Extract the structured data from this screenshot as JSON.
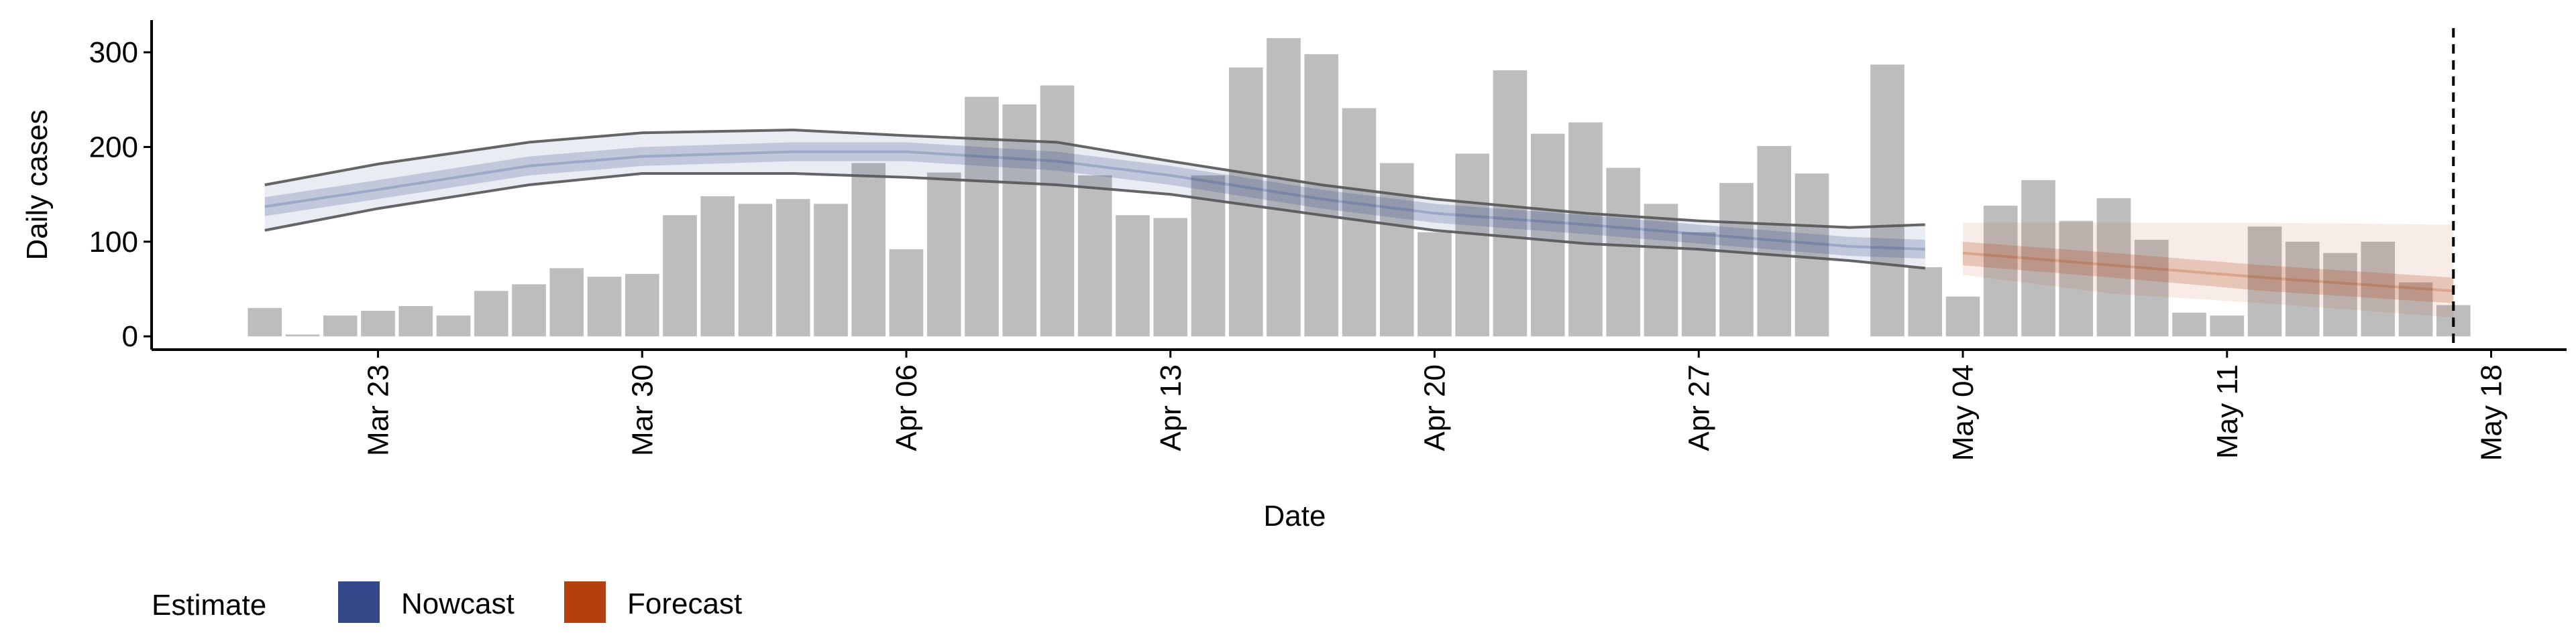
{
  "chart_data": {
    "type": "bar",
    "x_label": "Date",
    "y_label": "Daily cases",
    "color": "#bdbdbd",
    "x": [
      "Mar 20",
      "Mar 21",
      "Mar 22",
      "Mar 23",
      "Mar 24",
      "Mar 25",
      "Mar 26",
      "Mar 27",
      "Mar 28",
      "Mar 29",
      "Mar 30",
      "Mar 31",
      "Apr 1",
      "Apr 2",
      "Apr 3",
      "Apr 4",
      "Apr 5",
      "Apr 6",
      "Apr 7",
      "Apr 8",
      "Apr 9",
      "Apr 10",
      "Apr 11",
      "Apr 12",
      "Apr 13",
      "Apr 14",
      "Apr 15",
      "Apr 16",
      "Apr 17",
      "Apr 18",
      "Apr 19",
      "Apr 20",
      "Apr 21",
      "Apr 22",
      "Apr 23",
      "Apr 24",
      "Apr 25",
      "Apr 26",
      "Apr 27",
      "Apr 28",
      "Apr 29",
      "Apr 30",
      "May 1",
      "May 2",
      "May 3",
      "May 4",
      "May 5",
      "May 6",
      "May 7",
      "May 8",
      "May 9",
      "May 10",
      "May 11",
      "May 12",
      "May 13",
      "May 14",
      "May 15",
      "May 16",
      "May 17"
    ],
    "values": [
      30,
      2,
      22,
      27,
      32,
      22,
      48,
      55,
      72,
      63,
      66,
      128,
      148,
      140,
      145,
      140,
      183,
      92,
      173,
      253,
      245,
      265,
      170,
      128,
      125,
      170,
      284,
      315,
      298,
      241,
      183,
      110,
      193,
      281,
      214,
      226,
      178,
      140,
      110,
      162,
      201,
      172,
      null,
      287,
      73,
      42,
      138,
      165,
      122,
      146,
      102,
      25,
      22,
      116,
      100,
      88,
      100,
      57,
      33
    ],
    "xlim": [
      "Mar 17",
      "May 20"
    ],
    "xticks": [
      "Mar 23",
      "Mar 30",
      "Apr 06",
      "Apr 13",
      "Apr 20",
      "Apr 27",
      "May 04",
      "May 11",
      "May 18"
    ],
    "ylim": [
      -14,
      334
    ],
    "yticks": [
      0,
      100,
      200,
      300
    ],
    "vline": "May 17",
    "legend": {
      "title": "Estimate",
      "position": "bottom-left"
    },
    "series": [
      {
        "name": "Nowcast",
        "color": "#34488a",
        "x": [
          "Mar 20",
          "Mar 23",
          "Mar 27",
          "Mar 30",
          "Apr 3",
          "Apr 6",
          "Apr 10",
          "Apr 13",
          "Apr 17",
          "Apr 20",
          "Apr 24",
          "Apr 27",
          "May 1",
          "May 3"
        ],
        "values": [
          137,
          155,
          180,
          190,
          195,
          195,
          185,
          170,
          145,
          130,
          118,
          108,
          95,
          92
        ],
        "lower_50": [
          127,
          145,
          170,
          180,
          185,
          185,
          175,
          160,
          135,
          120,
          108,
          98,
          85,
          82
        ],
        "upper_50": [
          147,
          165,
          190,
          200,
          205,
          205,
          195,
          180,
          155,
          140,
          128,
          118,
          105,
          102
        ],
        "lower_90": [
          112,
          135,
          160,
          172,
          172,
          168,
          160,
          150,
          128,
          112,
          98,
          92,
          80,
          72
        ],
        "upper_90": [
          160,
          182,
          205,
          215,
          218,
          212,
          205,
          185,
          160,
          145,
          130,
          122,
          115,
          118
        ]
      },
      {
        "name": "Forecast",
        "color": "#b5400f",
        "x": [
          "May 4",
          "May 8",
          "May 12",
          "May 17"
        ],
        "values": [
          88,
          75,
          62,
          48
        ],
        "lower_50": [
          75,
          62,
          48,
          35
        ],
        "upper_50": [
          100,
          88,
          75,
          62
        ],
        "lower_90": [
          65,
          45,
          35,
          20
        ],
        "upper_90": [
          120,
          120,
          120,
          118
        ]
      }
    ]
  }
}
